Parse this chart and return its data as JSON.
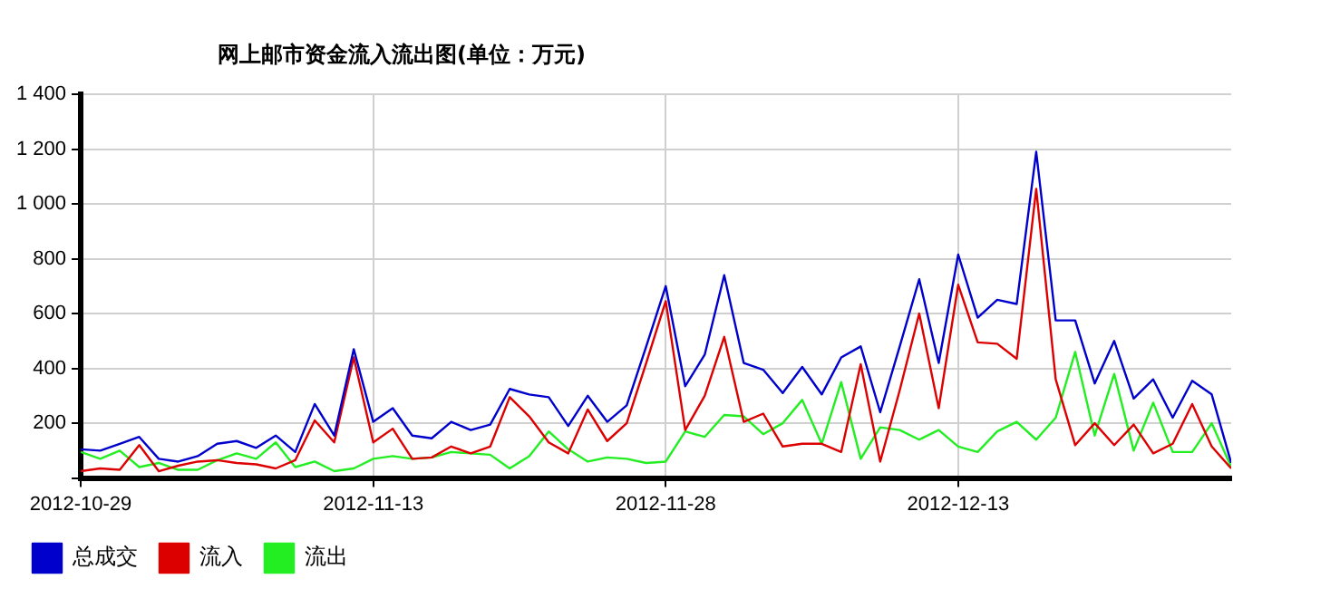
{
  "chart_data": {
    "type": "line",
    "title": "网上邮市资金流入流出图(单位：万元)",
    "x": [
      "2012-10-29",
      "2012-10-30",
      "2012-10-31",
      "2012-11-01",
      "2012-11-02",
      "2012-11-03",
      "2012-11-04",
      "2012-11-05",
      "2012-11-06",
      "2012-11-07",
      "2012-11-08",
      "2012-11-09",
      "2012-11-10",
      "2012-11-11",
      "2012-11-12",
      "2012-11-13",
      "2012-11-14",
      "2012-11-15",
      "2012-11-16",
      "2012-11-17",
      "2012-11-18",
      "2012-11-19",
      "2012-11-20",
      "2012-11-21",
      "2012-11-22",
      "2012-11-23",
      "2012-11-24",
      "2012-11-25",
      "2012-11-26",
      "2012-11-27",
      "2012-11-28",
      "2012-11-29",
      "2012-11-30",
      "2012-12-01",
      "2012-12-02",
      "2012-12-03",
      "2012-12-04",
      "2012-12-05",
      "2012-12-06",
      "2012-12-07",
      "2012-12-08",
      "2012-12-09",
      "2012-12-10",
      "2012-12-11",
      "2012-12-12",
      "2012-12-13",
      "2012-12-14",
      "2012-12-15",
      "2012-12-16",
      "2012-12-17",
      "2012-12-18",
      "2012-12-19",
      "2012-12-20",
      "2012-12-21",
      "2012-12-22",
      "2012-12-23",
      "2012-12-24",
      "2012-12-25",
      "2012-12-26",
      "2012-12-27"
    ],
    "series": [
      {
        "name": "总成交",
        "color": "#0000cc",
        "values": [
          105,
          100,
          125,
          150,
          70,
          60,
          80,
          125,
          135,
          110,
          155,
          95,
          270,
          155,
          470,
          205,
          255,
          155,
          145,
          205,
          175,
          195,
          325,
          305,
          295,
          190,
          300,
          205,
          265,
          480,
          700,
          335,
          450,
          740,
          420,
          395,
          310,
          405,
          305,
          440,
          480,
          240,
          480,
          725,
          420,
          815,
          585,
          650,
          635,
          1190,
          575,
          575,
          345,
          500,
          290,
          360,
          220,
          355,
          305,
          55
        ]
      },
      {
        "name": "流入",
        "color": "#dd0000",
        "values": [
          25,
          35,
          30,
          120,
          25,
          45,
          60,
          65,
          55,
          50,
          35,
          65,
          210,
          130,
          440,
          130,
          180,
          70,
          75,
          115,
          90,
          115,
          295,
          225,
          130,
          90,
          250,
          135,
          200,
          420,
          645,
          175,
          300,
          515,
          205,
          235,
          115,
          125,
          125,
          95,
          415,
          60,
          320,
          600,
          255,
          705,
          495,
          490,
          435,
          1055,
          360,
          120,
          200,
          120,
          195,
          90,
          125,
          270,
          115,
          35
        ]
      },
      {
        "name": "流出",
        "color": "#22ee22",
        "values": [
          95,
          70,
          100,
          40,
          55,
          30,
          30,
          65,
          90,
          70,
          130,
          40,
          60,
          25,
          35,
          70,
          80,
          70,
          75,
          95,
          90,
          85,
          35,
          80,
          170,
          105,
          60,
          75,
          70,
          55,
          60,
          170,
          150,
          230,
          225,
          160,
          200,
          285,
          125,
          350,
          70,
          185,
          175,
          140,
          175,
          115,
          95,
          170,
          205,
          140,
          220,
          460,
          155,
          380,
          100,
          275,
          95,
          95,
          200,
          40
        ]
      }
    ],
    "xlim": [
      "2012-10-29",
      "2012-12-27"
    ],
    "xticks": [
      "2012-10-29",
      "2012-11-13",
      "2012-11-28",
      "2012-12-13"
    ],
    "ylim": [
      0,
      1400
    ],
    "yticks": [
      {
        "value": 0,
        "label": null
      },
      200,
      400,
      600,
      800,
      {
        "value": 1000,
        "label": "1 000"
      },
      {
        "value": 1200,
        "label": "1 200"
      },
      {
        "value": 1400,
        "label": "1 400"
      }
    ],
    "grid": true,
    "legend": "bottom",
    "marker": "none",
    "line_style": "solid"
  }
}
